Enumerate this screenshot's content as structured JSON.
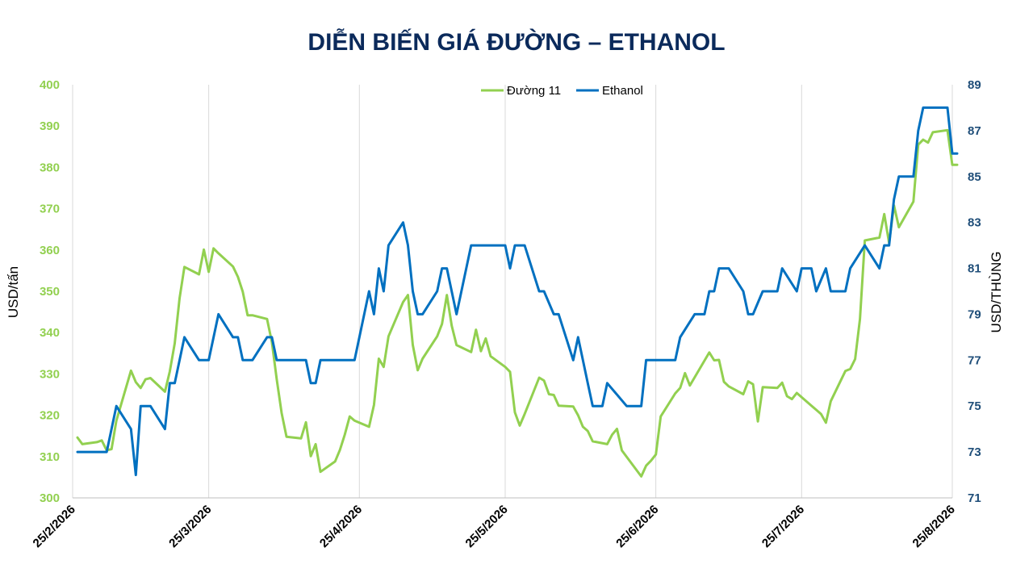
{
  "chart_data": {
    "type": "line",
    "title": "DIỄN BIẾN GIÁ ĐƯỜNG – ETHANOL",
    "y_left_label": "USD/tấn",
    "y_right_label": "USD/THÙNG",
    "y_left_range": [
      300,
      400
    ],
    "y_right_range": [
      71,
      89
    ],
    "y_left_ticks": [
      300,
      310,
      320,
      330,
      340,
      350,
      360,
      370,
      380,
      390,
      400
    ],
    "y_right_ticks": [
      71,
      73,
      75,
      77,
      79,
      81,
      83,
      85,
      87,
      89
    ],
    "x_range": [
      "2026-02-25",
      "2026-08-25"
    ],
    "x_ticks": [
      {
        "date": "2026-02-25",
        "label": "25/2/2026"
      },
      {
        "date": "2026-03-25",
        "label": "25/3/2026"
      },
      {
        "date": "2026-04-25",
        "label": "25/4/2026"
      },
      {
        "date": "2026-05-25",
        "label": "25/5/2026"
      },
      {
        "date": "2026-06-25",
        "label": "25/6/2026"
      },
      {
        "date": "2026-07-25",
        "label": "25/7/2026"
      },
      {
        "date": "2026-08-25",
        "label": "25/8/2026"
      }
    ],
    "legend_position": "top-center",
    "vertical_gridlines": true,
    "colors": {
      "sugar": "#92d050",
      "ethanol": "#0070c0",
      "left_axis": "#92d050",
      "right_axis": "#1f4e79",
      "title": "#0b2a5b",
      "grid": "#d9d9d9"
    },
    "series": [
      {
        "name": "Đường 11",
        "axis": "left",
        "points": [
          [
            "2026-02-26",
            314.6
          ],
          [
            "2026-02-27",
            313.0
          ],
          [
            "2026-03-02",
            313.5
          ],
          [
            "2026-03-03",
            313.9
          ],
          [
            "2026-03-04",
            311.5
          ],
          [
            "2026-03-05",
            311.8
          ],
          [
            "2026-03-06",
            318.7
          ],
          [
            "2026-03-09",
            330.8
          ],
          [
            "2026-03-10",
            328.0
          ],
          [
            "2026-03-11",
            326.6
          ],
          [
            "2026-03-12",
            328.7
          ],
          [
            "2026-03-13",
            329.0
          ],
          [
            "2026-03-16",
            325.7
          ],
          [
            "2026-03-17",
            330.6
          ],
          [
            "2026-03-18",
            337.4
          ],
          [
            "2026-03-19",
            348.3
          ],
          [
            "2026-03-20",
            355.9
          ],
          [
            "2026-03-23",
            354.1
          ],
          [
            "2026-03-24",
            360.1
          ],
          [
            "2026-03-25",
            354.7
          ],
          [
            "2026-03-26",
            360.4
          ],
          [
            "2026-03-27",
            359.2
          ],
          [
            "2026-03-30",
            356.0
          ],
          [
            "2026-03-31",
            353.5
          ],
          [
            "2026-04-01",
            349.9
          ],
          [
            "2026-04-02",
            344.2
          ],
          [
            "2026-04-03",
            344.2
          ],
          [
            "2026-04-06",
            343.3
          ],
          [
            "2026-04-07",
            337.7
          ],
          [
            "2026-04-08",
            328.7
          ],
          [
            "2026-04-09",
            320.5
          ],
          [
            "2026-04-10",
            314.8
          ],
          [
            "2026-04-13",
            314.4
          ],
          [
            "2026-04-14",
            318.3
          ],
          [
            "2026-04-15",
            310.1
          ],
          [
            "2026-04-16",
            313.0
          ],
          [
            "2026-04-17",
            306.3
          ],
          [
            "2026-04-20",
            308.8
          ],
          [
            "2026-04-21",
            311.6
          ],
          [
            "2026-04-22",
            315.3
          ],
          [
            "2026-04-23",
            319.7
          ],
          [
            "2026-04-24",
            318.7
          ],
          [
            "2026-04-27",
            317.2
          ],
          [
            "2026-04-28",
            322.5
          ],
          [
            "2026-04-29",
            333.7
          ],
          [
            "2026-04-30",
            331.7
          ],
          [
            "2026-05-01",
            339.1
          ],
          [
            "2026-05-04",
            347.4
          ],
          [
            "2026-05-05",
            349.1
          ],
          [
            "2026-05-06",
            337.0
          ],
          [
            "2026-05-07",
            330.9
          ],
          [
            "2026-05-08",
            333.7
          ],
          [
            "2026-05-11",
            339.1
          ],
          [
            "2026-05-12",
            342.1
          ],
          [
            "2026-05-13",
            349.1
          ],
          [
            "2026-05-14",
            341.7
          ],
          [
            "2026-05-15",
            337.0
          ],
          [
            "2026-05-18",
            335.3
          ],
          [
            "2026-05-19",
            340.7
          ],
          [
            "2026-05-20",
            335.5
          ],
          [
            "2026-05-21",
            338.6
          ],
          [
            "2026-05-22",
            334.3
          ],
          [
            "2026-05-25",
            331.7
          ],
          [
            "2026-05-26",
            330.5
          ],
          [
            "2026-05-27",
            320.7
          ],
          [
            "2026-05-28",
            317.5
          ],
          [
            "2026-05-29",
            320.3
          ],
          [
            "2026-06-01",
            329.1
          ],
          [
            "2026-06-02",
            328.4
          ],
          [
            "2026-06-03",
            325.1
          ],
          [
            "2026-06-04",
            324.9
          ],
          [
            "2026-06-05",
            322.3
          ],
          [
            "2026-06-08",
            322.1
          ],
          [
            "2026-06-09",
            320.0
          ],
          [
            "2026-06-10",
            317.2
          ],
          [
            "2026-06-11",
            316.2
          ],
          [
            "2026-06-12",
            313.7
          ],
          [
            "2026-06-15",
            313.0
          ],
          [
            "2026-06-16",
            315.3
          ],
          [
            "2026-06-17",
            316.7
          ],
          [
            "2026-06-18",
            311.5
          ],
          [
            "2026-06-22",
            305.2
          ],
          [
            "2026-06-23",
            307.8
          ],
          [
            "2026-06-24",
            309.0
          ],
          [
            "2026-06-25",
            310.5
          ],
          [
            "2026-06-26",
            319.7
          ],
          [
            "2026-06-29",
            325.3
          ],
          [
            "2026-06-30",
            326.6
          ],
          [
            "2026-07-01",
            330.2
          ],
          [
            "2026-07-02",
            327.2
          ],
          [
            "2026-07-06",
            335.2
          ],
          [
            "2026-07-07",
            333.3
          ],
          [
            "2026-07-08",
            333.4
          ],
          [
            "2026-07-09",
            328.1
          ],
          [
            "2026-07-10",
            327.0
          ],
          [
            "2026-07-13",
            325.1
          ],
          [
            "2026-07-14",
            328.2
          ],
          [
            "2026-07-15",
            327.5
          ],
          [
            "2026-07-16",
            318.5
          ],
          [
            "2026-07-17",
            326.8
          ],
          [
            "2026-07-20",
            326.6
          ],
          [
            "2026-07-21",
            327.9
          ],
          [
            "2026-07-22",
            324.6
          ],
          [
            "2026-07-23",
            323.9
          ],
          [
            "2026-07-24",
            325.4
          ],
          [
            "2026-07-27",
            322.3
          ],
          [
            "2026-07-28",
            321.3
          ],
          [
            "2026-07-29",
            320.3
          ],
          [
            "2026-07-30",
            318.2
          ],
          [
            "2026-07-31",
            323.4
          ],
          [
            "2026-08-03",
            330.7
          ],
          [
            "2026-08-04",
            331.2
          ],
          [
            "2026-08-05",
            333.6
          ],
          [
            "2026-08-06",
            343.3
          ],
          [
            "2026-08-07",
            362.3
          ],
          [
            "2026-08-10",
            363.0
          ],
          [
            "2026-08-11",
            368.7
          ],
          [
            "2026-08-12",
            361.7
          ],
          [
            "2026-08-13",
            370.8
          ],
          [
            "2026-08-14",
            365.5
          ],
          [
            "2026-08-17",
            371.7
          ],
          [
            "2026-08-18",
            385.5
          ],
          [
            "2026-08-19",
            386.7
          ],
          [
            "2026-08-20",
            386.0
          ],
          [
            "2026-08-21",
            388.5
          ],
          [
            "2026-08-24",
            389.0
          ],
          [
            "2026-08-25",
            380.6
          ],
          [
            "2026-08-26",
            380.6
          ]
        ]
      },
      {
        "name": "Ethanol",
        "axis": "right",
        "points": [
          [
            "2026-02-26",
            73.0
          ],
          [
            "2026-03-04",
            73.0
          ],
          [
            "2026-03-06",
            75.0
          ],
          [
            "2026-03-09",
            74.0
          ],
          [
            "2026-03-10",
            72.0
          ],
          [
            "2026-03-11",
            75.0
          ],
          [
            "2026-03-13",
            75.0
          ],
          [
            "2026-03-16",
            74.0
          ],
          [
            "2026-03-17",
            76.0
          ],
          [
            "2026-03-18",
            76.0
          ],
          [
            "2026-03-20",
            78.0
          ],
          [
            "2026-03-23",
            77.0
          ],
          [
            "2026-03-25",
            77.0
          ],
          [
            "2026-03-27",
            79.0
          ],
          [
            "2026-03-30",
            78.0
          ],
          [
            "2026-03-31",
            78.0
          ],
          [
            "2026-04-01",
            77.0
          ],
          [
            "2026-04-03",
            77.0
          ],
          [
            "2026-04-06",
            78.0
          ],
          [
            "2026-04-07",
            78.0
          ],
          [
            "2026-04-08",
            77.0
          ],
          [
            "2026-04-14",
            77.0
          ],
          [
            "2026-04-15",
            76.0
          ],
          [
            "2026-04-16",
            76.0
          ],
          [
            "2026-04-17",
            77.0
          ],
          [
            "2026-04-24",
            77.0
          ],
          [
            "2026-04-25",
            78.0
          ],
          [
            "2026-04-27",
            80.0
          ],
          [
            "2026-04-28",
            79.0
          ],
          [
            "2026-04-29",
            81.0
          ],
          [
            "2026-04-30",
            80.0
          ],
          [
            "2026-05-01",
            82.0
          ],
          [
            "2026-05-04",
            83.0
          ],
          [
            "2026-05-05",
            82.0
          ],
          [
            "2026-05-06",
            80.0
          ],
          [
            "2026-05-07",
            79.0
          ],
          [
            "2026-05-08",
            79.0
          ],
          [
            "2026-05-11",
            80.0
          ],
          [
            "2026-05-12",
            81.0
          ],
          [
            "2026-05-13",
            81.0
          ],
          [
            "2026-05-15",
            79.0
          ],
          [
            "2026-05-18",
            82.0
          ],
          [
            "2026-05-25",
            82.0
          ],
          [
            "2026-05-26",
            81.0
          ],
          [
            "2026-05-27",
            82.0
          ],
          [
            "2026-05-29",
            82.0
          ],
          [
            "2026-06-01",
            80.0
          ],
          [
            "2026-06-02",
            80.0
          ],
          [
            "2026-06-04",
            79.0
          ],
          [
            "2026-06-05",
            79.0
          ],
          [
            "2026-06-08",
            77.0
          ],
          [
            "2026-06-09",
            78.0
          ],
          [
            "2026-06-11",
            76.0
          ],
          [
            "2026-06-12",
            75.0
          ],
          [
            "2026-06-14",
            75.0
          ],
          [
            "2026-06-15",
            76.0
          ],
          [
            "2026-06-19",
            75.0
          ],
          [
            "2026-06-22",
            75.0
          ],
          [
            "2026-06-23",
            77.0
          ],
          [
            "2026-06-29",
            77.0
          ],
          [
            "2026-06-30",
            78.0
          ],
          [
            "2026-07-03",
            79.0
          ],
          [
            "2026-07-05",
            79.0
          ],
          [
            "2026-07-06",
            80.0
          ],
          [
            "2026-07-07",
            80.0
          ],
          [
            "2026-07-08",
            81.0
          ],
          [
            "2026-07-10",
            81.0
          ],
          [
            "2026-07-13",
            80.0
          ],
          [
            "2026-07-14",
            79.0
          ],
          [
            "2026-07-15",
            79.0
          ],
          [
            "2026-07-17",
            80.0
          ],
          [
            "2026-07-20",
            80.0
          ],
          [
            "2026-07-21",
            81.0
          ],
          [
            "2026-07-24",
            80.0
          ],
          [
            "2026-07-25",
            81.0
          ],
          [
            "2026-07-27",
            81.0
          ],
          [
            "2026-07-28",
            80.0
          ],
          [
            "2026-07-30",
            81.0
          ],
          [
            "2026-07-31",
            80.0
          ],
          [
            "2026-08-03",
            80.0
          ],
          [
            "2026-08-04",
            81.0
          ],
          [
            "2026-08-07",
            82.0
          ],
          [
            "2026-08-10",
            81.0
          ],
          [
            "2026-08-11",
            82.0
          ],
          [
            "2026-08-12",
            82.0
          ],
          [
            "2026-08-13",
            84.0
          ],
          [
            "2026-08-14",
            85.0
          ],
          [
            "2026-08-17",
            85.0
          ],
          [
            "2026-08-18",
            87.0
          ],
          [
            "2026-08-19",
            88.0
          ],
          [
            "2026-08-24",
            88.0
          ],
          [
            "2026-08-25",
            86.0
          ],
          [
            "2026-08-26",
            86.0
          ]
        ]
      }
    ]
  }
}
